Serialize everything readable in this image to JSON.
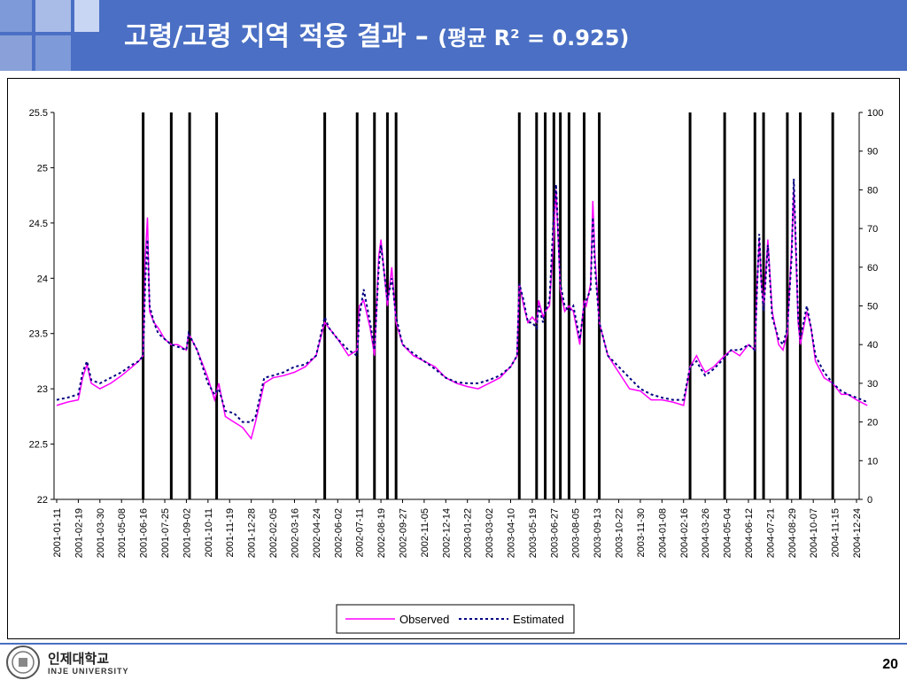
{
  "header": {
    "title_main": "고령/고령 지역 적용 결과 –",
    "title_paren": "(평균 R² = 0.925)"
  },
  "footer": {
    "university_kr": "인제대학교",
    "university_en": "INJE UNIVERSITY",
    "page_number": "20"
  },
  "colors": {
    "header": "#4a6fc4",
    "observed": "#ff00ff",
    "estimated": "#000080"
  },
  "chart_data": {
    "type": "line",
    "left_axis": {
      "min": 22,
      "max": 25.5,
      "ticks": [
        "22",
        "22.5",
        "23",
        "23.5",
        "24",
        "24.5",
        "25",
        "25.5"
      ]
    },
    "right_axis": {
      "min": 0,
      "max": 100,
      "ticks": [
        "0",
        "10",
        "20",
        "30",
        "40",
        "50",
        "60",
        "70",
        "80",
        "90",
        "100"
      ]
    },
    "x_tick_labels": [
      "2001-01-11",
      "2001-02-19",
      "2001-03-30",
      "2001-05-08",
      "2001-06-16",
      "2001-07-25",
      "2001-09-02",
      "2001-10-11",
      "2001-11-19",
      "2001-12-28",
      "2002-02-05",
      "2002-03-16",
      "2002-04-24",
      "2002-06-02",
      "2002-07-11",
      "2002-08-19",
      "2002-09-27",
      "2002-11-05",
      "2002-12-14",
      "2003-01-22",
      "2003-03-02",
      "2003-04-10",
      "2003-05-19",
      "2003-06-27",
      "2003-08-05",
      "2003-09-13",
      "2003-10-22",
      "2003-11-30",
      "2004-01-08",
      "2004-02-16",
      "2004-03-26",
      "2004-05-04",
      "2004-06-12",
      "2004-07-21",
      "2004-08-29",
      "2004-10-07",
      "2004-11-15",
      "2004-12-24"
    ],
    "bar_positions": [
      4.0,
      5.3,
      6.15,
      7.4,
      12.4,
      13.9,
      14.7,
      15.3,
      15.7,
      21.4,
      22.2,
      22.6,
      23.0,
      23.3,
      23.7,
      24.4,
      25.1,
      29.3,
      30.9,
      32.3,
      32.7,
      33.8,
      34.4,
      35.9
    ],
    "bar_value": 100,
    "series": [
      {
        "name": "Observed",
        "points": [
          [
            0,
            22.85
          ],
          [
            0.5,
            22.88
          ],
          [
            1,
            22.9
          ],
          [
            1.2,
            23.1
          ],
          [
            1.4,
            23.22
          ],
          [
            1.6,
            23.05
          ],
          [
            2,
            23.0
          ],
          [
            2.5,
            23.05
          ],
          [
            3,
            23.12
          ],
          [
            3.5,
            23.2
          ],
          [
            3.8,
            23.25
          ],
          [
            4.0,
            23.3
          ],
          [
            4.1,
            24.2
          ],
          [
            4.2,
            24.55
          ],
          [
            4.3,
            23.7
          ],
          [
            4.5,
            23.6
          ],
          [
            4.7,
            23.55
          ],
          [
            5.0,
            23.45
          ],
          [
            5.3,
            23.4
          ],
          [
            5.6,
            23.4
          ],
          [
            6.0,
            23.35
          ],
          [
            6.1,
            23.5
          ],
          [
            6.5,
            23.35
          ],
          [
            7.0,
            23.1
          ],
          [
            7.3,
            22.9
          ],
          [
            7.5,
            23.05
          ],
          [
            7.8,
            22.75
          ],
          [
            8.2,
            22.7
          ],
          [
            8.6,
            22.65
          ],
          [
            9.0,
            22.55
          ],
          [
            9.2,
            22.7
          ],
          [
            9.6,
            23.05
          ],
          [
            10.0,
            23.1
          ],
          [
            10.5,
            23.12
          ],
          [
            11.0,
            23.15
          ],
          [
            11.5,
            23.2
          ],
          [
            12.0,
            23.3
          ],
          [
            12.4,
            23.6
          ],
          [
            12.6,
            23.55
          ],
          [
            13.0,
            23.45
          ],
          [
            13.5,
            23.3
          ],
          [
            13.9,
            23.35
          ],
          [
            14.0,
            23.75
          ],
          [
            14.2,
            23.8
          ],
          [
            14.5,
            23.55
          ],
          [
            14.7,
            23.3
          ],
          [
            14.9,
            24.2
          ],
          [
            15.0,
            24.35
          ],
          [
            15.3,
            23.75
          ],
          [
            15.5,
            24.1
          ],
          [
            15.7,
            23.6
          ],
          [
            16.0,
            23.4
          ],
          [
            16.5,
            23.3
          ],
          [
            17.0,
            23.25
          ],
          [
            17.5,
            23.2
          ],
          [
            18.0,
            23.1
          ],
          [
            18.5,
            23.05
          ],
          [
            19.0,
            23.02
          ],
          [
            19.5,
            23.0
          ],
          [
            20.0,
            23.05
          ],
          [
            20.5,
            23.1
          ],
          [
            21.0,
            23.2
          ],
          [
            21.3,
            23.3
          ],
          [
            21.4,
            23.95
          ],
          [
            21.6,
            23.75
          ],
          [
            21.8,
            23.6
          ],
          [
            22.0,
            23.65
          ],
          [
            22.2,
            23.6
          ],
          [
            22.3,
            23.8
          ],
          [
            22.5,
            23.65
          ],
          [
            22.6,
            23.7
          ],
          [
            22.8,
            23.75
          ],
          [
            23.0,
            24.4
          ],
          [
            23.1,
            24.8
          ],
          [
            23.3,
            23.9
          ],
          [
            23.5,
            23.7
          ],
          [
            23.7,
            23.75
          ],
          [
            23.9,
            23.7
          ],
          [
            24.2,
            23.4
          ],
          [
            24.4,
            23.8
          ],
          [
            24.5,
            23.75
          ],
          [
            24.7,
            23.95
          ],
          [
            24.8,
            24.7
          ],
          [
            24.9,
            24.2
          ],
          [
            25.1,
            23.6
          ],
          [
            25.5,
            23.3
          ],
          [
            26.0,
            23.15
          ],
          [
            26.5,
            23.0
          ],
          [
            27.0,
            22.98
          ],
          [
            27.5,
            22.9
          ],
          [
            28.0,
            22.9
          ],
          [
            28.5,
            22.88
          ],
          [
            29.0,
            22.85
          ],
          [
            29.3,
            23.2
          ],
          [
            29.6,
            23.3
          ],
          [
            29.8,
            23.22
          ],
          [
            30.0,
            23.15
          ],
          [
            30.4,
            23.2
          ],
          [
            30.9,
            23.3
          ],
          [
            31.2,
            23.35
          ],
          [
            31.6,
            23.3
          ],
          [
            32.0,
            23.4
          ],
          [
            32.3,
            23.35
          ],
          [
            32.4,
            23.95
          ],
          [
            32.5,
            24.35
          ],
          [
            32.6,
            23.95
          ],
          [
            32.7,
            23.75
          ],
          [
            32.9,
            24.35
          ],
          [
            33.1,
            23.7
          ],
          [
            33.4,
            23.4
          ],
          [
            33.6,
            23.35
          ],
          [
            33.8,
            23.5
          ],
          [
            34.0,
            24.3
          ],
          [
            34.1,
            24.8
          ],
          [
            34.3,
            23.6
          ],
          [
            34.4,
            23.4
          ],
          [
            34.7,
            23.7
          ],
          [
            34.9,
            23.55
          ],
          [
            35.1,
            23.25
          ],
          [
            35.5,
            23.1
          ],
          [
            35.9,
            23.05
          ],
          [
            36.3,
            22.95
          ],
          [
            36.6,
            22.95
          ],
          [
            37.0,
            22.9
          ],
          [
            37.5,
            22.85
          ]
        ]
      },
      {
        "name": "Estimated",
        "points": [
          [
            0,
            22.9
          ],
          [
            0.5,
            22.92
          ],
          [
            1,
            22.95
          ],
          [
            1.2,
            23.15
          ],
          [
            1.4,
            23.25
          ],
          [
            1.6,
            23.08
          ],
          [
            2,
            23.05
          ],
          [
            2.5,
            23.1
          ],
          [
            3,
            23.15
          ],
          [
            3.5,
            23.22
          ],
          [
            3.8,
            23.25
          ],
          [
            4.0,
            23.3
          ],
          [
            4.1,
            24.0
          ],
          [
            4.2,
            24.35
          ],
          [
            4.3,
            23.75
          ],
          [
            4.5,
            23.6
          ],
          [
            4.7,
            23.5
          ],
          [
            5.0,
            23.45
          ],
          [
            5.3,
            23.4
          ],
          [
            5.6,
            23.38
          ],
          [
            6.0,
            23.35
          ],
          [
            6.1,
            23.5
          ],
          [
            6.5,
            23.35
          ],
          [
            7.0,
            23.05
          ],
          [
            7.3,
            22.95
          ],
          [
            7.5,
            23.0
          ],
          [
            7.8,
            22.8
          ],
          [
            8.2,
            22.78
          ],
          [
            8.6,
            22.7
          ],
          [
            9.0,
            22.7
          ],
          [
            9.2,
            22.75
          ],
          [
            9.6,
            23.1
          ],
          [
            10.0,
            23.12
          ],
          [
            10.5,
            23.15
          ],
          [
            11.0,
            23.2
          ],
          [
            11.5,
            23.22
          ],
          [
            12.0,
            23.3
          ],
          [
            12.4,
            23.65
          ],
          [
            12.6,
            23.55
          ],
          [
            13.0,
            23.45
          ],
          [
            13.5,
            23.35
          ],
          [
            13.9,
            23.3
          ],
          [
            14.0,
            23.65
          ],
          [
            14.2,
            23.9
          ],
          [
            14.5,
            23.6
          ],
          [
            14.7,
            23.35
          ],
          [
            14.9,
            24.1
          ],
          [
            15.0,
            24.3
          ],
          [
            15.3,
            23.8
          ],
          [
            15.5,
            24.0
          ],
          [
            15.7,
            23.65
          ],
          [
            16.0,
            23.4
          ],
          [
            16.5,
            23.32
          ],
          [
            17.0,
            23.25
          ],
          [
            17.5,
            23.18
          ],
          [
            18.0,
            23.1
          ],
          [
            18.5,
            23.06
          ],
          [
            19.0,
            23.05
          ],
          [
            19.5,
            23.05
          ],
          [
            20.0,
            23.08
          ],
          [
            20.5,
            23.12
          ],
          [
            21.0,
            23.2
          ],
          [
            21.3,
            23.3
          ],
          [
            21.4,
            23.95
          ],
          [
            21.6,
            23.8
          ],
          [
            21.8,
            23.6
          ],
          [
            22.0,
            23.6
          ],
          [
            22.2,
            23.55
          ],
          [
            22.3,
            23.75
          ],
          [
            22.5,
            23.6
          ],
          [
            22.6,
            23.7
          ],
          [
            22.8,
            23.8
          ],
          [
            23.0,
            24.6
          ],
          [
            23.1,
            24.85
          ],
          [
            23.3,
            23.95
          ],
          [
            23.5,
            23.75
          ],
          [
            23.7,
            23.7
          ],
          [
            23.9,
            23.75
          ],
          [
            24.2,
            23.45
          ],
          [
            24.4,
            23.75
          ],
          [
            24.5,
            23.8
          ],
          [
            24.7,
            23.9
          ],
          [
            24.8,
            24.55
          ],
          [
            24.9,
            24.1
          ],
          [
            25.1,
            23.6
          ],
          [
            25.5,
            23.3
          ],
          [
            26.0,
            23.2
          ],
          [
            26.5,
            23.1
          ],
          [
            27.0,
            23.0
          ],
          [
            27.5,
            22.95
          ],
          [
            28.0,
            22.92
          ],
          [
            28.5,
            22.9
          ],
          [
            29.0,
            22.9
          ],
          [
            29.3,
            23.2
          ],
          [
            29.6,
            23.25
          ],
          [
            29.8,
            23.18
          ],
          [
            30.0,
            23.12
          ],
          [
            30.4,
            23.18
          ],
          [
            30.9,
            23.28
          ],
          [
            31.2,
            23.35
          ],
          [
            31.6,
            23.35
          ],
          [
            32.0,
            23.4
          ],
          [
            32.3,
            23.35
          ],
          [
            32.4,
            23.9
          ],
          [
            32.5,
            24.4
          ],
          [
            32.6,
            23.95
          ],
          [
            32.7,
            23.7
          ],
          [
            32.9,
            24.3
          ],
          [
            33.1,
            23.65
          ],
          [
            33.4,
            23.45
          ],
          [
            33.6,
            23.4
          ],
          [
            33.8,
            23.55
          ],
          [
            34.0,
            24.2
          ],
          [
            34.1,
            24.9
          ],
          [
            34.3,
            23.65
          ],
          [
            34.4,
            23.45
          ],
          [
            34.7,
            23.75
          ],
          [
            34.9,
            23.55
          ],
          [
            35.1,
            23.3
          ],
          [
            35.5,
            23.15
          ],
          [
            35.9,
            23.05
          ],
          [
            36.3,
            22.98
          ],
          [
            36.6,
            22.95
          ],
          [
            37.0,
            22.92
          ],
          [
            37.5,
            22.88
          ]
        ]
      }
    ]
  }
}
